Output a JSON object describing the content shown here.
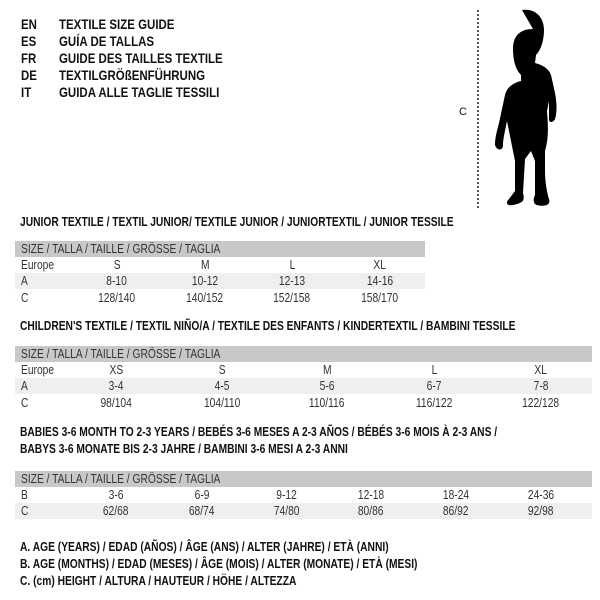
{
  "title_lines": [
    {
      "code": "EN",
      "text": "TEXTILE SIZE GUIDE"
    },
    {
      "code": "ES",
      "text": "GUÍA DE TALLAS"
    },
    {
      "code": "FR",
      "text": "GUIDE DES TAILLES TEXTILE"
    },
    {
      "code": "DE",
      "text": "TEXTILGRÖßENFÜHRUNG"
    },
    {
      "code": "IT",
      "text": "GUIDA ALLE TAGLIE TESSILI"
    }
  ],
  "figure": {
    "measure_label": "C",
    "icon": "child-silhouette"
  },
  "tables": [
    {
      "title": [
        "JUNIOR TEXTILE / TEXTIL JUNIOR/ TEXTILE JUNIOR / JUNIORTEXTIL / JUNIOR TESSILE"
      ],
      "header": "SIZE / TALLA / TAILLE / GRÖSSE / TAGLIA",
      "rows": [
        {
          "label": "Europe",
          "values": [
            "S",
            "M",
            "L",
            "XL"
          ]
        },
        {
          "label": "A",
          "values": [
            "8-10",
            "10-12",
            "12-13",
            "14-16"
          ]
        },
        {
          "label": "C",
          "values": [
            "128/140",
            "140/152",
            "152/158",
            "158/170"
          ]
        }
      ]
    },
    {
      "title": [
        "CHILDREN'S TEXTILE / TEXTIL NIÑO/A / TEXTILE DES ENFANTS / KINDERTEXTIL / BAMBINI TESSILE"
      ],
      "header": "SIZE / TALLA / TAILLE / GRÖSSE / TAGLIA",
      "rows": [
        {
          "label": "Europe",
          "values": [
            "XS",
            "S",
            "M",
            "L",
            "XL"
          ]
        },
        {
          "label": "A",
          "values": [
            "3-4",
            "4-5",
            "5-6",
            "6-7",
            "7-8"
          ]
        },
        {
          "label": "C",
          "values": [
            "98/104",
            "104/110",
            "110/116",
            "116/122",
            "122/128"
          ]
        }
      ]
    },
    {
      "title": [
        "BABIES 3-6 MONTH TO 2-3 YEARS / BEBÉS 3-6 MESES A 2-3 AÑOS / BÉBÉS 3-6 MOIS À 2-3 ANS /",
        "BABYS 3-6 MONATE BIS 2-3 JAHRE / BAMBINI 3-6 MESI A 2-3 ANNI"
      ],
      "header": "SIZE / TALLA / TAILLE / GRÖSSE / TAGLIA",
      "rows": [
        {
          "label": "B",
          "values": [
            "3-6",
            "6-9",
            "9-12",
            "12-18",
            "18-24",
            "24-36"
          ]
        },
        {
          "label": "C",
          "values": [
            "62/68",
            "68/74",
            "74/80",
            "80/86",
            "86/92",
            "92/98"
          ]
        }
      ]
    }
  ],
  "legend": [
    "A. AGE (YEARS) / EDAD (AÑOS) / ÂGE (ANS) / ALTER (JAHRE) / ETÀ (ANNI)",
    "B. AGE (MONTHS) / EDAD (MESES) / ÂGE (MOIS) / ALTER (MONATE) / ETÀ (MESI)",
    "C. (cm) HEIGHT / ALTURA / HAUTEUR / HÖHE / ALTEZZA"
  ]
}
